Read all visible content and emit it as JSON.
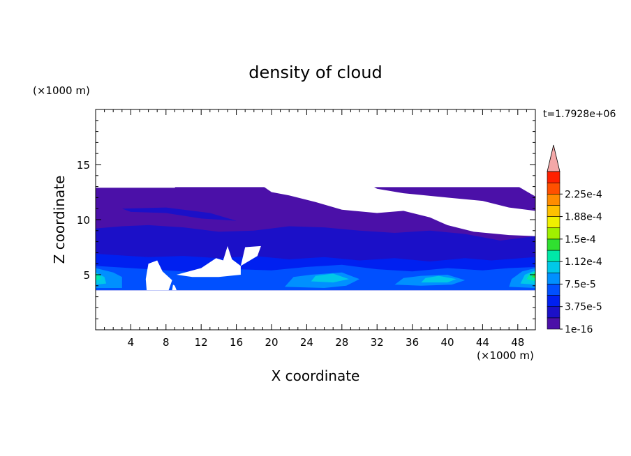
{
  "chart_data": {
    "type": "heatmap",
    "title": "density of cloud",
    "xlabel": "X coordinate",
    "ylabel": "Z coordinate",
    "x_unit": "(×1000 m)",
    "y_unit": "(×1000 m)",
    "time_label": "t=1.7928e+06",
    "xlim": [
      0,
      50
    ],
    "ylim": [
      0,
      20
    ],
    "x_ticks": [
      4,
      8,
      12,
      16,
      20,
      24,
      28,
      32,
      36,
      40,
      44,
      48
    ],
    "y_ticks": [
      5,
      10,
      15
    ],
    "colorbar": {
      "levels": [
        {
          "value": 1e-16,
          "color": "#4b10a8"
        },
        {
          "value": 1.875e-05,
          "color": "#1b10c8"
        },
        {
          "value": 3.75e-05,
          "color": "#0020f0"
        },
        {
          "value": 5.625e-05,
          "color": "#0050ff"
        },
        {
          "value": 7.5e-05,
          "color": "#0090ff"
        },
        {
          "value": 9.375e-05,
          "color": "#00c8e8"
        },
        {
          "value": 0.0001125,
          "color": "#00e8a8"
        },
        {
          "value": 0.00013125,
          "color": "#30e030"
        },
        {
          "value": 0.00015,
          "color": "#a0f000"
        },
        {
          "value": 0.00016875,
          "color": "#f0f000"
        },
        {
          "value": 0.0001875,
          "color": "#ffc000"
        },
        {
          "value": 0.00020625,
          "color": "#ff8c00"
        },
        {
          "value": 0.000225,
          "color": "#ff5000"
        },
        {
          "value": 0.00024375,
          "color": "#ff2000"
        }
      ],
      "labels": [
        "2.25e-4",
        "1.88e-4",
        "1.5e-4",
        "1.12e-4",
        "7.5e-5",
        "3.75e-5",
        "1e-16"
      ],
      "label_values": [
        0.000225,
        0.0001875,
        0.00015,
        0.0001125,
        7.5e-05,
        3.75e-05,
        1e-16
      ],
      "overflow_color": "#f4a8a8"
    },
    "regions": [
      {
        "level": 0,
        "poly": [
          [
            0,
            3.6
          ],
          [
            50,
            3.6
          ],
          [
            50,
            8.5
          ],
          [
            47,
            8.6
          ],
          [
            43,
            8.9
          ],
          [
            40,
            9.5
          ],
          [
            38,
            10.2
          ],
          [
            35,
            10.8
          ],
          [
            32,
            10.6
          ],
          [
            28,
            10.9
          ],
          [
            25,
            11.6
          ],
          [
            22,
            12.2
          ],
          [
            20,
            12.5
          ],
          [
            18,
            13.6
          ],
          [
            16,
            14.3
          ],
          [
            13,
            14.7
          ],
          [
            10,
            14.0
          ],
          [
            9,
            12.9
          ],
          [
            6,
            12.9
          ],
          [
            0,
            12.9
          ]
        ]
      },
      {
        "level": 0,
        "poly": [
          [
            20.7,
            14.5
          ],
          [
            21.5,
            15.9
          ],
          [
            23.5,
            16.2
          ],
          [
            25,
            16.3
          ],
          [
            27,
            16.8
          ],
          [
            30,
            16.8
          ],
          [
            34,
            16.6
          ],
          [
            37,
            16.5
          ],
          [
            38,
            16.0
          ],
          [
            36,
            15.5
          ],
          [
            32,
            15.6
          ],
          [
            29,
            15.3
          ],
          [
            26.5,
            15.0
          ],
          [
            24,
            14.3
          ],
          [
            22,
            14.0
          ]
        ]
      },
      {
        "level": 0,
        "poly": [
          [
            44,
            16.2
          ],
          [
            44.5,
            16.6
          ],
          [
            48,
            16.7
          ],
          [
            49,
            16.2
          ],
          [
            48,
            15.9
          ],
          [
            45,
            15.9
          ]
        ]
      },
      {
        "level": 0,
        "poly": [
          [
            37.5,
            14.4
          ],
          [
            38.5,
            15.3
          ],
          [
            40.5,
            14.9
          ],
          [
            40,
            13.9
          ],
          [
            38.5,
            13.7
          ]
        ]
      },
      {
        "level": 0,
        "poly": [
          [
            30,
            13.7
          ],
          [
            31,
            14.3
          ],
          [
            34,
            14.4
          ],
          [
            37,
            13.5
          ],
          [
            40,
            13.4
          ],
          [
            44,
            13.2
          ],
          [
            47,
            13.5
          ],
          [
            50,
            12.1
          ],
          [
            50,
            10.8
          ],
          [
            47,
            11.1
          ],
          [
            44,
            11.7
          ],
          [
            40,
            12.0
          ],
          [
            35,
            12.4
          ],
          [
            32,
            12.8
          ]
        ]
      },
      {
        "level": 1,
        "poly": [
          [
            0,
            3.6
          ],
          [
            50,
            3.6
          ],
          [
            50,
            8.5
          ],
          [
            46,
            8.1
          ],
          [
            42,
            8.7
          ],
          [
            38,
            9.0
          ],
          [
            34,
            8.8
          ],
          [
            30,
            9.0
          ],
          [
            26,
            9.3
          ],
          [
            22,
            9.4
          ],
          [
            18,
            9.0
          ],
          [
            14,
            8.9
          ],
          [
            10,
            9.3
          ],
          [
            6,
            9.5
          ],
          [
            3,
            9.4
          ],
          [
            0,
            9.2
          ]
        ]
      },
      {
        "level": 1,
        "poly": [
          [
            3,
            11.0
          ],
          [
            8,
            11.1
          ],
          [
            13,
            10.6
          ],
          [
            16,
            9.9
          ],
          [
            12,
            10.1
          ],
          [
            8,
            10.6
          ],
          [
            4,
            10.7
          ]
        ]
      },
      {
        "level": 2,
        "poly": [
          [
            0,
            3.6
          ],
          [
            50,
            3.6
          ],
          [
            50,
            6.6
          ],
          [
            45,
            6.3
          ],
          [
            42,
            6.5
          ],
          [
            38,
            6.2
          ],
          [
            34,
            6.5
          ],
          [
            30,
            6.3
          ],
          [
            26,
            6.6
          ],
          [
            22,
            6.4
          ],
          [
            18,
            6.7
          ],
          [
            14,
            6.5
          ],
          [
            10,
            6.7
          ],
          [
            6,
            6.6
          ],
          [
            2,
            6.8
          ],
          [
            0,
            6.9
          ]
        ]
      },
      {
        "level": 3,
        "poly": [
          [
            0,
            3.6
          ],
          [
            50,
            3.6
          ],
          [
            50,
            5.7
          ],
          [
            47,
            5.6
          ],
          [
            44,
            5.4
          ],
          [
            40,
            5.6
          ],
          [
            36,
            5.3
          ],
          [
            32,
            5.5
          ],
          [
            28,
            5.9
          ],
          [
            24,
            5.7
          ],
          [
            20,
            5.4
          ],
          [
            16,
            5.5
          ],
          [
            12,
            5.2
          ],
          [
            8,
            5.4
          ],
          [
            4,
            5.6
          ],
          [
            0,
            5.8
          ]
        ]
      },
      {
        "level": 4,
        "poly": [
          [
            0,
            3.8
          ],
          [
            3,
            3.8
          ],
          [
            3,
            4.8
          ],
          [
            2,
            5.2
          ],
          [
            0,
            5.6
          ]
        ]
      },
      {
        "level": 4,
        "poly": [
          [
            21.5,
            3.9
          ],
          [
            26,
            3.8
          ],
          [
            28.5,
            4.0
          ],
          [
            30,
            4.6
          ],
          [
            28,
            5.2
          ],
          [
            24.5,
            5.0
          ],
          [
            22.5,
            4.8
          ]
        ]
      },
      {
        "level": 4,
        "poly": [
          [
            34,
            4.1
          ],
          [
            37,
            4.0
          ],
          [
            40.5,
            4.1
          ],
          [
            42,
            4.5
          ],
          [
            40,
            5.0
          ],
          [
            37,
            4.9
          ],
          [
            35,
            4.7
          ]
        ]
      },
      {
        "level": 4,
        "poly": [
          [
            47,
            3.9
          ],
          [
            50,
            3.8
          ],
          [
            50,
            5.6
          ],
          [
            48.5,
            5.3
          ],
          [
            47.3,
            4.6
          ]
        ]
      },
      {
        "level": 5,
        "poly": [
          [
            0,
            4.1
          ],
          [
            1.2,
            4.2
          ],
          [
            1,
            4.8
          ],
          [
            0,
            5.2
          ]
        ]
      },
      {
        "level": 5,
        "poly": [
          [
            24.5,
            4.4
          ],
          [
            27,
            4.3
          ],
          [
            28.8,
            4.6
          ],
          [
            27,
            5.1
          ],
          [
            25,
            4.9
          ]
        ]
      },
      {
        "level": 5,
        "poly": [
          [
            37,
            4.3
          ],
          [
            40,
            4.3
          ],
          [
            41,
            4.6
          ],
          [
            39,
            4.9
          ],
          [
            37.5,
            4.7
          ]
        ]
      },
      {
        "level": 5,
        "poly": [
          [
            48.3,
            4.2
          ],
          [
            50,
            4.1
          ],
          [
            50,
            5.4
          ],
          [
            48.8,
            5.0
          ]
        ]
      },
      {
        "level": 6,
        "poly": [
          [
            0,
            4.5
          ],
          [
            0.6,
            4.6
          ],
          [
            0.4,
            5.0
          ],
          [
            0,
            5.1
          ]
        ]
      },
      {
        "level": 6,
        "poly": [
          [
            49.0,
            4.6
          ],
          [
            50,
            4.4
          ],
          [
            50,
            5.3
          ],
          [
            49.3,
            5.0
          ]
        ]
      },
      {
        "level": 7,
        "poly": [
          [
            49.6,
            4.8
          ],
          [
            50,
            4.7
          ],
          [
            50,
            5.2
          ]
        ]
      }
    ],
    "holes": [
      {
        "poly": [
          [
            5.8,
            3.6
          ],
          [
            8.3,
            3.6
          ],
          [
            8.7,
            4.5
          ],
          [
            7.6,
            5.3
          ],
          [
            7.0,
            6.3
          ],
          [
            6.0,
            6.0
          ],
          [
            5.7,
            4.6
          ]
        ]
      },
      {
        "poly": [
          [
            8.7,
            3.6
          ],
          [
            9.2,
            3.6
          ],
          [
            9.0,
            4.0
          ],
          [
            8.8,
            4.1
          ]
        ]
      },
      {
        "poly": [
          [
            9.2,
            5.0
          ],
          [
            12,
            5.6
          ],
          [
            13.7,
            6.5
          ],
          [
            14.5,
            6.3
          ],
          [
            15,
            7.6
          ],
          [
            15.5,
            6.4
          ],
          [
            16.5,
            5.8
          ],
          [
            16.5,
            5.0
          ],
          [
            14,
            4.8
          ],
          [
            11,
            4.8
          ]
        ]
      },
      {
        "poly": [
          [
            16.5,
            5.8
          ],
          [
            17,
            7.5
          ],
          [
            18.8,
            7.6
          ],
          [
            18.4,
            6.7
          ]
        ]
      },
      {
        "poly": [
          [
            0,
            12.95
          ],
          [
            50,
            12.95
          ],
          [
            50,
            20
          ],
          [
            0,
            20
          ]
        ]
      }
    ]
  }
}
